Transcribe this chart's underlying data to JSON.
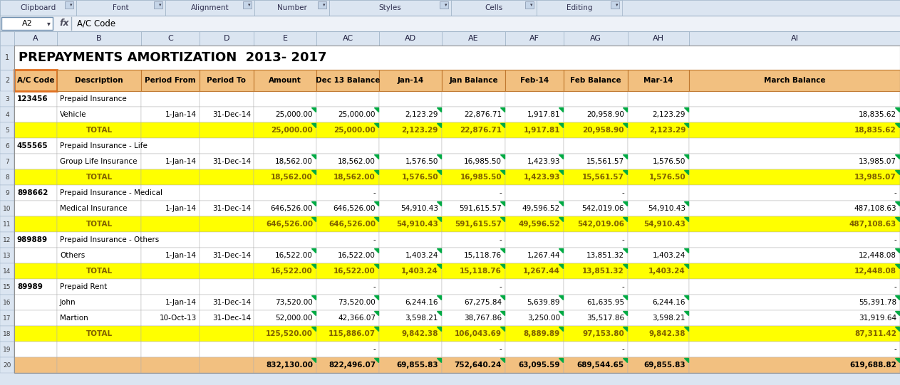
{
  "title": "PREPAYMENTS AMORTIZATION  2013- 2017",
  "toolbar_sections": [
    "Clipboard",
    "Font",
    "Alignment",
    "Number",
    "Styles",
    "Cells",
    "Editing"
  ],
  "formula_bar_ref": "A2",
  "formula_bar_text": "A/C Code",
  "col_header_names": [
    "A",
    "B",
    "C",
    "D",
    "E",
    "AC",
    "AD",
    "AE",
    "AF",
    "AG",
    "AH",
    "AI"
  ],
  "col_labels": [
    "A/C Code",
    "Description",
    "Period From",
    "Period To",
    "Amount",
    "Dec 13 Balance",
    "Jan-14",
    "Jan Balance",
    "Feb-14",
    "Feb Balance",
    "Mar-14",
    "March Balance"
  ],
  "rows": [
    {
      "row": 3,
      "a": "123456",
      "b": "Prepaid Insurance",
      "c": "",
      "d": "",
      "e": "",
      "ac": "",
      "ad": "",
      "ae": "",
      "af": "",
      "ag": "",
      "ah": "",
      "ai": "",
      "type": "header"
    },
    {
      "row": 4,
      "a": "",
      "b": "Vehicle",
      "c": "1-Jan-14",
      "d": "31-Dec-14",
      "e": "25,000.00",
      "ac": "25,000.00",
      "ad": "2,123.29",
      "ae": "22,876.71",
      "af": "1,917.81",
      "ag": "20,958.90",
      "ah": "2,123.29",
      "ai": "18,835.62",
      "type": "data"
    },
    {
      "row": 5,
      "a": "",
      "b": "TOTAL",
      "c": "",
      "d": "",
      "e": "25,000.00",
      "ac": "25,000.00",
      "ad": "2,123.29",
      "ae": "22,876.71",
      "af": "1,917.81",
      "ag": "20,958.90",
      "ah": "2,123.29",
      "ai": "18,835.62",
      "type": "total"
    },
    {
      "row": 6,
      "a": "455565",
      "b": "Prepaid Insurance - Life",
      "c": "",
      "d": "",
      "e": "",
      "ac": "",
      "ad": "",
      "ae": "",
      "af": "",
      "ag": "",
      "ah": "",
      "ai": "",
      "type": "header"
    },
    {
      "row": 7,
      "a": "",
      "b": "Group Life Insurance",
      "c": "1-Jan-14",
      "d": "31-Dec-14",
      "e": "18,562.00",
      "ac": "18,562.00",
      "ad": "1,576.50",
      "ae": "16,985.50",
      "af": "1,423.93",
      "ag": "15,561.57",
      "ah": "1,576.50",
      "ai": "13,985.07",
      "type": "data"
    },
    {
      "row": 8,
      "a": "",
      "b": "TOTAL",
      "c": "",
      "d": "",
      "e": "18,562.00",
      "ac": "18,562.00",
      "ad": "1,576.50",
      "ae": "16,985.50",
      "af": "1,423.93",
      "ag": "15,561.57",
      "ah": "1,576.50",
      "ai": "13,985.07",
      "type": "total"
    },
    {
      "row": 9,
      "a": "898662",
      "b": "Prepaid Insurance - Medical",
      "c": "",
      "d": "",
      "e": "",
      "ac": "-",
      "ad": "",
      "ae": "-",
      "af": "",
      "ag": "-",
      "ah": "",
      "ai": "-",
      "type": "header"
    },
    {
      "row": 10,
      "a": "",
      "b": "Medical Insurance",
      "c": "1-Jan-14",
      "d": "31-Dec-14",
      "e": "646,526.00",
      "ac": "646,526.00",
      "ad": "54,910.43",
      "ae": "591,615.57",
      "af": "49,596.52",
      "ag": "542,019.06",
      "ah": "54,910.43",
      "ai": "487,108.63",
      "type": "data"
    },
    {
      "row": 11,
      "a": "",
      "b": "TOTAL",
      "c": "",
      "d": "",
      "e": "646,526.00",
      "ac": "646,526.00",
      "ad": "54,910.43",
      "ae": "591,615.57",
      "af": "49,596.52",
      "ag": "542,019.06",
      "ah": "54,910.43",
      "ai": "487,108.63",
      "type": "total"
    },
    {
      "row": 12,
      "a": "989889",
      "b": "Prepaid Insurance - Others",
      "c": "",
      "d": "",
      "e": "",
      "ac": "-",
      "ad": "",
      "ae": "-",
      "af": "",
      "ag": "-",
      "ah": "",
      "ai": "-",
      "type": "header"
    },
    {
      "row": 13,
      "a": "",
      "b": "Others",
      "c": "1-Jan-14",
      "d": "31-Dec-14",
      "e": "16,522.00",
      "ac": "16,522.00",
      "ad": "1,403.24",
      "ae": "15,118.76",
      "af": "1,267.44",
      "ag": "13,851.32",
      "ah": "1,403.24",
      "ai": "12,448.08",
      "type": "data"
    },
    {
      "row": 14,
      "a": "",
      "b": "TOTAL",
      "c": "",
      "d": "",
      "e": "16,522.00",
      "ac": "16,522.00",
      "ad": "1,403.24",
      "ae": "15,118.76",
      "af": "1,267.44",
      "ag": "13,851.32",
      "ah": "1,403.24",
      "ai": "12,448.08",
      "type": "total"
    },
    {
      "row": 15,
      "a": "89989",
      "b": "Prepaid Rent",
      "c": "",
      "d": "",
      "e": "",
      "ac": "-",
      "ad": "",
      "ae": "-",
      "af": "",
      "ag": "-",
      "ah": "",
      "ai": "-",
      "type": "header"
    },
    {
      "row": 16,
      "a": "",
      "b": "John",
      "c": "1-Jan-14",
      "d": "31-Dec-14",
      "e": "73,520.00",
      "ac": "73,520.00",
      "ad": "6,244.16",
      "ae": "67,275.84",
      "af": "5,639.89",
      "ag": "61,635.95",
      "ah": "6,244.16",
      "ai": "55,391.78",
      "type": "data"
    },
    {
      "row": 17,
      "a": "",
      "b": "Martion",
      "c": "10-Oct-13",
      "d": "31-Dec-14",
      "e": "52,000.00",
      "ac": "42,366.07",
      "ad": "3,598.21",
      "ae": "38,767.86",
      "af": "3,250.00",
      "ag": "35,517.86",
      "ah": "3,598.21",
      "ai": "31,919.64",
      "type": "data"
    },
    {
      "row": 18,
      "a": "",
      "b": "TOTAL",
      "c": "",
      "d": "",
      "e": "125,520.00",
      "ac": "115,886.07",
      "ad": "9,842.38",
      "ae": "106,043.69",
      "af": "8,889.89",
      "ag": "97,153.80",
      "ah": "9,842.38",
      "ai": "87,311.42",
      "type": "total"
    },
    {
      "row": 19,
      "a": "",
      "b": "",
      "c": "",
      "d": "",
      "e": "",
      "ac": "-",
      "ad": "",
      "ae": "-",
      "af": "",
      "ag": "-",
      "ah": "",
      "ai": "-",
      "type": "empty"
    },
    {
      "row": 20,
      "a": "",
      "b": "",
      "c": "",
      "d": "",
      "e": "832,130.00",
      "ac": "822,496.07",
      "ad": "69,855.83",
      "ae": "752,640.24",
      "af": "63,095.59",
      "ag": "689,544.65",
      "ah": "69,855.83",
      "ai": "619,688.82",
      "type": "grand_total"
    }
  ],
  "toolbar_bg": "#dbe5f1",
  "formula_bg": "#eef2f8",
  "col_header_bg": "#dbe5f1",
  "row_header_bg": "#dbe5f1",
  "data_bg": "#ffffff",
  "total_bg": "#ffff00",
  "header_row_bg": "#f2c080",
  "grand_total_bg": "#f2c080",
  "total_text_color": "#7f6000",
  "header_text_color": "#000000",
  "data_text_color": "#000000",
  "border_color": "#b0b0b0",
  "toolbar_border_color": "#a0b4c8",
  "col_header_border": "#a0b4c8",
  "green_tri_color": "#00aa44",
  "selected_cell_color": "#e07020"
}
